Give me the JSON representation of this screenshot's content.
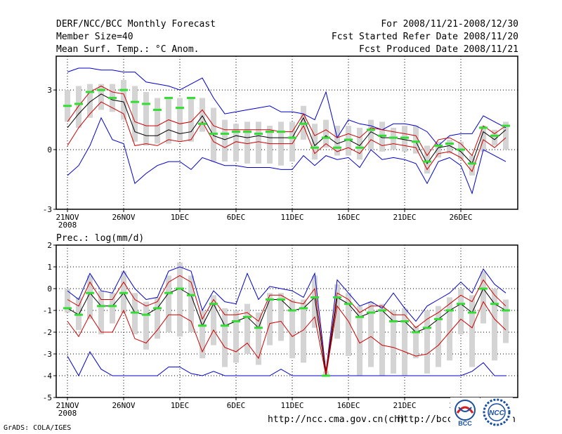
{
  "header": {
    "title": "DERF/NCC/BCC Monthly Forecast",
    "member_size": "Member Size=40",
    "variable_top": "Mean Surf. Temp.: °C Anom.",
    "period": "For 2008/11/21-2008/12/30",
    "start_date": "Fcst Started Refer Date 2008/11/20",
    "produced_date": "Fcst Produced Date 2008/11/21"
  },
  "footer": {
    "credit": "GrADS: COLA/IGES",
    "url1": "http://ncc.cma.gov.cn(ch)",
    "url2": "http://bcc.c",
    "url2_tail": "n",
    "logo_bcc_text": "BCC",
    "logo_ncc_text": "NCC"
  },
  "chart_data": [
    {
      "type": "line",
      "title": "Mean Surf. Temp.: °C Anom.",
      "ylim": [
        -3,
        4.7
      ],
      "yticks": [
        "3",
        "0",
        "-3"
      ],
      "ytick_values": [
        3,
        0,
        -3
      ],
      "xtick_labels": [
        "21NOV",
        "26NOV",
        "1DEC",
        "6DEC",
        "11DEC",
        "16DEC",
        "21DEC",
        "26DEC"
      ],
      "xtick_days": [
        0,
        5,
        10,
        15,
        20,
        25,
        30,
        35
      ],
      "year_label": "2008",
      "n_days": 40,
      "grid": true,
      "colors": {
        "max_min": "#0000cc",
        "spread": "#cc0000",
        "mean": "#000000",
        "box": "#d4d4d4",
        "median": "#33dd33"
      },
      "series": [
        {
          "name": "ensemble max",
          "values": [
            3.9,
            4.1,
            4.1,
            4.0,
            4.0,
            3.9,
            3.9,
            3.4,
            3.3,
            3.2,
            3.0,
            3.3,
            3.6,
            2.6,
            1.8,
            1.9,
            2.0,
            2.1,
            2.2,
            1.9,
            1.9,
            1.8,
            1.5,
            2.9,
            0.6,
            1.5,
            1.3,
            1.2,
            1.0,
            1.3,
            1.3,
            1.2,
            0.9,
            0.2,
            0.7,
            0.8,
            0.8,
            1.7,
            1.4,
            1.1
          ]
        },
        {
          "name": "mean + spread",
          "values": [
            1.4,
            2.2,
            2.9,
            3.2,
            2.9,
            2.8,
            1.4,
            1.2,
            1.2,
            1.5,
            1.3,
            1.4,
            2.0,
            1.2,
            1.0,
            1.0,
            1.0,
            1.0,
            1.0,
            0.9,
            0.9,
            1.8,
            0.7,
            1.0,
            0.6,
            0.8,
            0.6,
            1.1,
            1.0,
            0.9,
            0.8,
            0.7,
            -0.3,
            0.5,
            0.6,
            0.3,
            -0.3,
            1.2,
            0.8,
            1.2
          ]
        },
        {
          "name": "ensemble mean",
          "values": [
            1.1,
            1.8,
            2.4,
            2.8,
            2.5,
            2.4,
            0.9,
            0.7,
            0.7,
            1.0,
            0.8,
            0.9,
            1.7,
            0.7,
            0.5,
            0.7,
            0.6,
            0.7,
            0.6,
            0.6,
            0.6,
            1.6,
            0.2,
            0.7,
            0.3,
            0.5,
            0.2,
            0.9,
            0.6,
            0.6,
            0.5,
            0.4,
            -0.7,
            0.1,
            0.2,
            -0.1,
            -0.7,
            0.9,
            0.5,
            1.0
          ]
        },
        {
          "name": "mean - spread",
          "values": [
            0.2,
            1.1,
            1.8,
            2.4,
            2.1,
            1.8,
            0.2,
            0.3,
            0.2,
            0.5,
            0.4,
            0.5,
            1.4,
            0.4,
            0.1,
            0.4,
            0.3,
            0.4,
            0.3,
            0.3,
            0.3,
            1.2,
            -0.2,
            0.3,
            -0.1,
            0.1,
            -0.2,
            0.5,
            0.2,
            0.3,
            0.2,
            0.1,
            -1.0,
            -0.2,
            -0.1,
            -0.4,
            -1.1,
            0.5,
            0.1,
            0.6
          ]
        },
        {
          "name": "ensemble min",
          "values": [
            -1.3,
            -0.8,
            0.2,
            1.6,
            0.5,
            0.3,
            -1.7,
            -1.2,
            -0.8,
            -0.6,
            -0.6,
            -1.0,
            -0.4,
            -0.6,
            -0.8,
            -0.8,
            -0.9,
            -0.9,
            -0.9,
            -1.0,
            -1.0,
            -0.3,
            -0.8,
            -0.3,
            -0.5,
            -0.4,
            -0.9,
            0.0,
            -0.5,
            -0.4,
            -0.5,
            -0.7,
            -1.7,
            -0.6,
            -0.4,
            -0.8,
            -2.2,
            0.0,
            -0.3,
            -0.6
          ]
        }
      ],
      "boxes": {
        "upper": [
          3.0,
          3.2,
          3.3,
          3.3,
          3.3,
          3.5,
          3.2,
          2.9,
          2.6,
          2.6,
          2.6,
          2.6,
          2.6,
          2.1,
          1.5,
          1.3,
          1.4,
          1.4,
          1.2,
          1.4,
          1.4,
          2.2,
          1.3,
          1.5,
          1.2,
          1.2,
          1.1,
          1.5,
          1.4,
          1.1,
          1.2,
          1.2,
          0.2,
          0.4,
          0.5,
          0.4,
          -0.3,
          1.2,
          1.0,
          1.4
        ],
        "lower": [
          1.4,
          1.1,
          1.6,
          2.0,
          1.9,
          1.5,
          0.4,
          0.2,
          0.3,
          0.3,
          0.4,
          0.4,
          0.9,
          -0.6,
          -0.6,
          -0.6,
          -0.7,
          -0.7,
          -0.7,
          -0.8,
          -0.6,
          0.5,
          -0.5,
          0.1,
          -0.3,
          -0.3,
          -0.5,
          0.0,
          -0.1,
          0.0,
          -0.1,
          -0.2,
          -1.2,
          -0.4,
          -0.2,
          -0.5,
          -1.3,
          -0.1,
          0.2,
          0.0
        ],
        "median": [
          2.2,
          2.3,
          2.9,
          3.0,
          2.6,
          3.0,
          2.4,
          2.3,
          2.0,
          2.6,
          2.1,
          2.6,
          1.3,
          0.8,
          0.8,
          0.9,
          0.9,
          0.8,
          0.9,
          0.9,
          0.6,
          1.3,
          0.1,
          0.6,
          0.1,
          0.5,
          0.1,
          1.0,
          0.7,
          0.6,
          0.6,
          0.4,
          -0.6,
          0.2,
          0.3,
          0.0,
          -0.7,
          1.1,
          0.7,
          1.2
        ]
      }
    },
    {
      "type": "line",
      "title": "Prec.: log(mm/d)",
      "ylim": [
        -5,
        2
      ],
      "yticks": [
        "2",
        "1",
        "0",
        "-1",
        "-2",
        "-3",
        "-4",
        "-5"
      ],
      "ytick_values": [
        2,
        1,
        0,
        -1,
        -2,
        -3,
        -4,
        -5
      ],
      "xtick_labels": [
        "21NOV",
        "26NOV",
        "1DEC",
        "6DEC",
        "11DEC",
        "16DEC",
        "21DEC",
        "26DEC"
      ],
      "xtick_days": [
        0,
        5,
        10,
        15,
        20,
        25,
        30,
        35
      ],
      "year_label": "2008",
      "n_days": 40,
      "grid": true,
      "colors": {
        "max_min": "#0000cc",
        "spread": "#cc0000",
        "mean": "#000000",
        "box": "#d4d4d4",
        "median": "#33dd33"
      },
      "series": [
        {
          "name": "ensemble max",
          "values": [
            -0.1,
            -0.5,
            0.7,
            -0.1,
            -0.2,
            0.8,
            0.0,
            -0.5,
            -0.4,
            0.8,
            1.0,
            0.8,
            -1.0,
            -0.1,
            -0.6,
            -0.7,
            0.7,
            -0.5,
            0.1,
            0.0,
            -0.1,
            -0.4,
            0.7,
            -3.8,
            0.4,
            -0.2,
            -0.8,
            -0.6,
            -0.9,
            -0.2,
            -0.9,
            -1.5,
            -0.8,
            -0.5,
            -0.2,
            0.3,
            -0.2,
            0.9,
            0.2,
            -0.2
          ]
        },
        {
          "name": "mean + spread",
          "values": [
            -0.5,
            -0.8,
            0.3,
            -0.5,
            -0.5,
            0.3,
            -0.5,
            -0.8,
            -0.6,
            0.3,
            0.6,
            0.3,
            -1.4,
            -0.5,
            -1.2,
            -1.2,
            -1.1,
            -1.5,
            -0.3,
            -0.3,
            -0.6,
            -0.7,
            0.0,
            -3.8,
            -0.2,
            -0.5,
            -1.1,
            -0.8,
            -0.8,
            -1.2,
            -1.2,
            -1.8,
            -1.4,
            -1.1,
            -0.7,
            -0.3,
            -0.6,
            0.4,
            -0.3,
            -0.8
          ]
        },
        {
          "name": "ensemble mean",
          "values": [
            -0.9,
            -1.2,
            -0.2,
            -0.8,
            -0.8,
            -0.2,
            -1.1,
            -1.2,
            -0.9,
            -0.2,
            0.0,
            -0.3,
            -1.7,
            -0.7,
            -1.7,
            -1.5,
            -1.3,
            -1.8,
            -0.5,
            -0.5,
            -1.0,
            -0.9,
            -0.4,
            -4.0,
            -0.4,
            -0.7,
            -1.3,
            -1.1,
            -1.0,
            -1.5,
            -1.5,
            -2.0,
            -1.8,
            -1.4,
            -1.0,
            -0.7,
            -1.1,
            0.0,
            -0.7,
            -1.0
          ]
        },
        {
          "name": "mean - spread",
          "values": [
            -1.5,
            -2.2,
            -1.2,
            -2.0,
            -2.0,
            -1.0,
            -2.3,
            -2.5,
            -1.9,
            -1.2,
            -1.2,
            -1.5,
            -2.9,
            -1.9,
            -2.7,
            -2.9,
            -2.5,
            -3.2,
            -1.6,
            -1.5,
            -2.2,
            -1.9,
            -1.3,
            -4.0,
            -0.8,
            -1.5,
            -2.5,
            -2.2,
            -2.6,
            -2.7,
            -2.9,
            -3.1,
            -3.0,
            -2.6,
            -2.0,
            -1.4,
            -1.8,
            -0.6,
            -1.4,
            -1.9
          ]
        },
        {
          "name": "ensemble min",
          "values": [
            -3.1,
            -4.0,
            -2.9,
            -3.7,
            -4.0,
            -4.0,
            -4.0,
            -4.0,
            -4.0,
            -3.6,
            -3.6,
            -3.9,
            -4.0,
            -3.8,
            -4.0,
            -4.0,
            -4.0,
            -4.0,
            -4.0,
            -3.7,
            -4.0,
            -4.0,
            -4.0,
            -4.0,
            -4.0,
            -4.0,
            -4.0,
            -4.0,
            -4.0,
            -4.0,
            -4.0,
            -4.0,
            -4.0,
            -4.0,
            -4.0,
            -4.0,
            -3.8,
            -3.4,
            -4.0,
            -4.0
          ]
        }
      ],
      "boxes": {
        "upper": [
          0.0,
          -0.4,
          0.6,
          -0.1,
          -0.2,
          0.8,
          -0.2,
          -0.6,
          -0.4,
          0.6,
          1.2,
          0.6,
          -1.0,
          -0.3,
          -0.9,
          -1.0,
          -0.7,
          -1.1,
          -0.2,
          -0.2,
          -0.5,
          -0.5,
          0.6,
          -3.8,
          0.2,
          -0.2,
          -0.8,
          -0.6,
          -0.7,
          -1.0,
          -0.9,
          -1.7,
          -1.0,
          -0.8,
          -0.4,
          0.0,
          -0.3,
          0.8,
          0.0,
          -0.5
        ],
        "lower": [
          -1.1,
          -1.9,
          -1.4,
          -2.1,
          -1.6,
          -1.1,
          -2.1,
          -2.8,
          -2.3,
          -2.0,
          -2.2,
          -2.0,
          -3.2,
          -2.6,
          -3.6,
          -3.4,
          -3.0,
          -3.5,
          -2.6,
          -2.4,
          -3.2,
          -3.4,
          -1.8,
          -4.0,
          -2.3,
          -3.1,
          -4.0,
          -3.6,
          -4.0,
          -3.9,
          -4.0,
          -3.2,
          -3.9,
          -3.6,
          -3.3,
          -2.1,
          -3.6,
          -1.6,
          -3.3,
          -2.5
        ]
      }
    }
  ]
}
